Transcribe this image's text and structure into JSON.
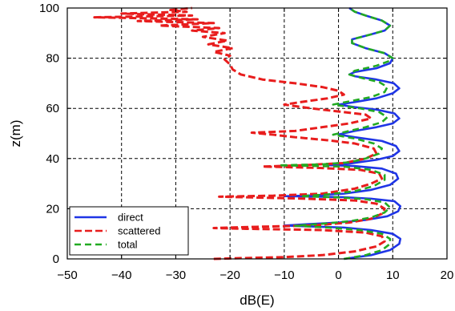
{
  "chart_data": {
    "type": "line",
    "title": "",
    "xlabel": "dB(E)",
    "ylabel": "z(m)",
    "xlim": [
      -50,
      20
    ],
    "ylim": [
      0,
      100
    ],
    "xticks": [
      -50,
      -40,
      -30,
      -20,
      -10,
      0,
      10,
      20
    ],
    "yticks": [
      0,
      20,
      40,
      60,
      80,
      100
    ],
    "xtick_labels": [
      "−50",
      "−40",
      "−30",
      "−20",
      "−10",
      "0",
      "10",
      "20"
    ],
    "ytick_labels": [
      "0",
      "20",
      "40",
      "60",
      "80",
      "100"
    ],
    "grid": true,
    "legend_position": "bottom-left",
    "series": [
      {
        "name": "direct",
        "color": "#1f35e6",
        "style": "solid",
        "points": [
          [
            1,
            0
          ],
          [
            6,
            1.5
          ],
          [
            9.5,
            3.5
          ],
          [
            11.2,
            6
          ],
          [
            11.4,
            8
          ],
          [
            10,
            10
          ],
          [
            6,
            11.5
          ],
          [
            1,
            12.5
          ],
          [
            -6,
            13
          ],
          [
            -10,
            13.3
          ],
          [
            -6,
            13.8
          ],
          [
            0,
            14.5
          ],
          [
            5,
            15.5
          ],
          [
            9,
            17
          ],
          [
            11,
            19
          ],
          [
            11.4,
            21
          ],
          [
            10.3,
            23
          ],
          [
            6,
            24
          ],
          [
            1,
            24.6
          ],
          [
            -6,
            24.9
          ],
          [
            -10,
            25
          ],
          [
            -5,
            25.3
          ],
          [
            1,
            26
          ],
          [
            6,
            27.5
          ],
          [
            9.5,
            29.5
          ],
          [
            11,
            32
          ],
          [
            10.6,
            34
          ],
          [
            8,
            36
          ],
          [
            3,
            37
          ],
          [
            -2,
            37.4
          ],
          [
            2,
            38
          ],
          [
            7,
            39.5
          ],
          [
            10,
            41
          ],
          [
            11.2,
            43
          ],
          [
            10.6,
            45
          ],
          [
            8,
            47
          ],
          [
            3,
            48.5
          ],
          [
            0,
            49.6
          ],
          [
            3,
            51
          ],
          [
            7,
            52.5
          ],
          [
            10,
            54
          ],
          [
            11.2,
            56
          ],
          [
            10.3,
            58
          ],
          [
            7,
            59.5
          ],
          [
            3,
            60.5
          ],
          [
            0,
            61.5
          ],
          [
            3,
            62.5
          ],
          [
            7,
            64
          ],
          [
            10,
            66
          ],
          [
            11.2,
            68
          ],
          [
            10.2,
            70
          ],
          [
            7,
            71.5
          ],
          [
            3,
            72.8
          ],
          [
            2,
            73.5
          ],
          [
            3,
            74.5
          ],
          [
            7,
            76
          ],
          [
            9.5,
            78
          ],
          [
            10,
            80
          ],
          [
            8.5,
            82
          ],
          [
            5,
            84
          ],
          [
            2.5,
            86
          ],
          [
            2.5,
            87.5
          ],
          [
            6,
            89.5
          ],
          [
            8.5,
            91
          ],
          [
            9.5,
            93
          ],
          [
            8,
            95
          ],
          [
            5,
            97
          ],
          [
            3,
            98.5
          ],
          [
            2,
            100
          ]
        ]
      },
      {
        "name": "scattered",
        "color": "#e81d1d",
        "style": "dashed",
        "points": [
          [
            -23,
            0
          ],
          [
            -18,
            0.3
          ],
          [
            -10,
            0.7
          ],
          [
            -3,
            1.5
          ],
          [
            3,
            3
          ],
          [
            7,
            5
          ],
          [
            8.5,
            7
          ],
          [
            8,
            9
          ],
          [
            5,
            10.5
          ],
          [
            -3,
            11.5
          ],
          [
            -17,
            12
          ],
          [
            -23,
            12.3
          ],
          [
            -15,
            12.8
          ],
          [
            -5,
            13.3
          ],
          [
            2,
            14.5
          ],
          [
            6,
            16
          ],
          [
            8,
            18
          ],
          [
            8.5,
            20
          ],
          [
            7,
            22
          ],
          [
            3,
            23.3
          ],
          [
            -6,
            24
          ],
          [
            -16,
            24.5
          ],
          [
            -22,
            24.8
          ],
          [
            -12,
            25.2
          ],
          [
            -3,
            26
          ],
          [
            3,
            28
          ],
          [
            6,
            30
          ],
          [
            8,
            32
          ],
          [
            7.5,
            34
          ],
          [
            4,
            35.5
          ],
          [
            -4,
            36.3
          ],
          [
            -14,
            36.8
          ],
          [
            -7,
            37.3
          ],
          [
            1,
            38.2
          ],
          [
            5,
            40
          ],
          [
            7,
            42
          ],
          [
            6.5,
            44
          ],
          [
            3,
            46
          ],
          [
            -2,
            47.3
          ],
          [
            -8,
            48.5
          ],
          [
            -12,
            49.5
          ],
          [
            -16,
            50.3
          ],
          [
            -8,
            51
          ],
          [
            -3,
            52.5
          ],
          [
            2,
            54
          ],
          [
            6,
            56
          ],
          [
            5,
            57.5
          ],
          [
            1,
            58.5
          ],
          [
            -5,
            60
          ],
          [
            -10,
            61.5
          ],
          [
            -7,
            62.5
          ],
          [
            -2,
            64
          ],
          [
            1,
            65.5
          ],
          [
            0,
            67
          ],
          [
            -3,
            68.5
          ],
          [
            -8,
            70
          ],
          [
            -14,
            71.5
          ],
          [
            -18,
            73.5
          ],
          [
            -19.5,
            75.5
          ],
          [
            -20,
            77.5
          ],
          [
            -21,
            79.5
          ],
          [
            -20,
            81
          ],
          [
            -23,
            82.5
          ],
          [
            -19.5,
            84
          ],
          [
            -24,
            85.5
          ],
          [
            -20.5,
            87
          ],
          [
            -25,
            88.5
          ],
          [
            -21,
            90
          ],
          [
            -27,
            91
          ],
          [
            -22,
            92
          ],
          [
            -33,
            93
          ],
          [
            -23,
            94
          ],
          [
            -37,
            94.8
          ],
          [
            -26,
            95.5
          ],
          [
            -45,
            96.3
          ],
          [
            -27,
            97
          ],
          [
            -40,
            97.8
          ],
          [
            -28,
            98.5
          ],
          [
            -31,
            99.2
          ],
          [
            -27,
            100
          ]
        ]
      },
      {
        "name": "total",
        "color": "#22aa22",
        "style": "dashed",
        "points": [
          [
            1,
            0
          ],
          [
            5,
            1.5
          ],
          [
            8,
            3.5
          ],
          [
            9.5,
            6
          ],
          [
            9.5,
            8
          ],
          [
            8,
            10
          ],
          [
            4,
            11.5
          ],
          [
            -2,
            12.5
          ],
          [
            -8,
            13.2
          ],
          [
            -3,
            14
          ],
          [
            2,
            15
          ],
          [
            6,
            16.5
          ],
          [
            8.5,
            18.5
          ],
          [
            9.5,
            20.5
          ],
          [
            8.5,
            22.5
          ],
          [
            5,
            23.8
          ],
          [
            0,
            24.5
          ],
          [
            -7,
            25
          ],
          [
            -2,
            25.7
          ],
          [
            3,
            27
          ],
          [
            6.5,
            29
          ],
          [
            8.5,
            31.5
          ],
          [
            8.5,
            33.5
          ],
          [
            6,
            35.5
          ],
          [
            1,
            36.8
          ],
          [
            -11,
            37.3
          ],
          [
            -3,
            37.7
          ],
          [
            2,
            38.5
          ],
          [
            5,
            40
          ],
          [
            7.5,
            42
          ],
          [
            8,
            44
          ],
          [
            6.5,
            46
          ],
          [
            3,
            48
          ],
          [
            -1,
            49.5
          ],
          [
            2,
            51
          ],
          [
            5,
            52.5
          ],
          [
            8,
            54.5
          ],
          [
            9,
            56.5
          ],
          [
            7.5,
            58.5
          ],
          [
            4,
            60
          ],
          [
            -1,
            61.5
          ],
          [
            2,
            62.8
          ],
          [
            6,
            64.5
          ],
          [
            8.5,
            66.5
          ],
          [
            9,
            68.5
          ],
          [
            7.5,
            70.5
          ],
          [
            4.5,
            72
          ],
          [
            2,
            73.5
          ],
          [
            3,
            75
          ],
          [
            7,
            77
          ],
          [
            9.5,
            79
          ],
          [
            10,
            80
          ],
          [
            8.5,
            82
          ],
          [
            5,
            84
          ],
          [
            2.5,
            86
          ],
          [
            2.5,
            87.5
          ],
          [
            6,
            89.5
          ],
          [
            8.5,
            91
          ],
          [
            9.5,
            93
          ],
          [
            8,
            95
          ],
          [
            5,
            97
          ],
          [
            3,
            98.5
          ],
          [
            2,
            100
          ]
        ]
      }
    ]
  }
}
